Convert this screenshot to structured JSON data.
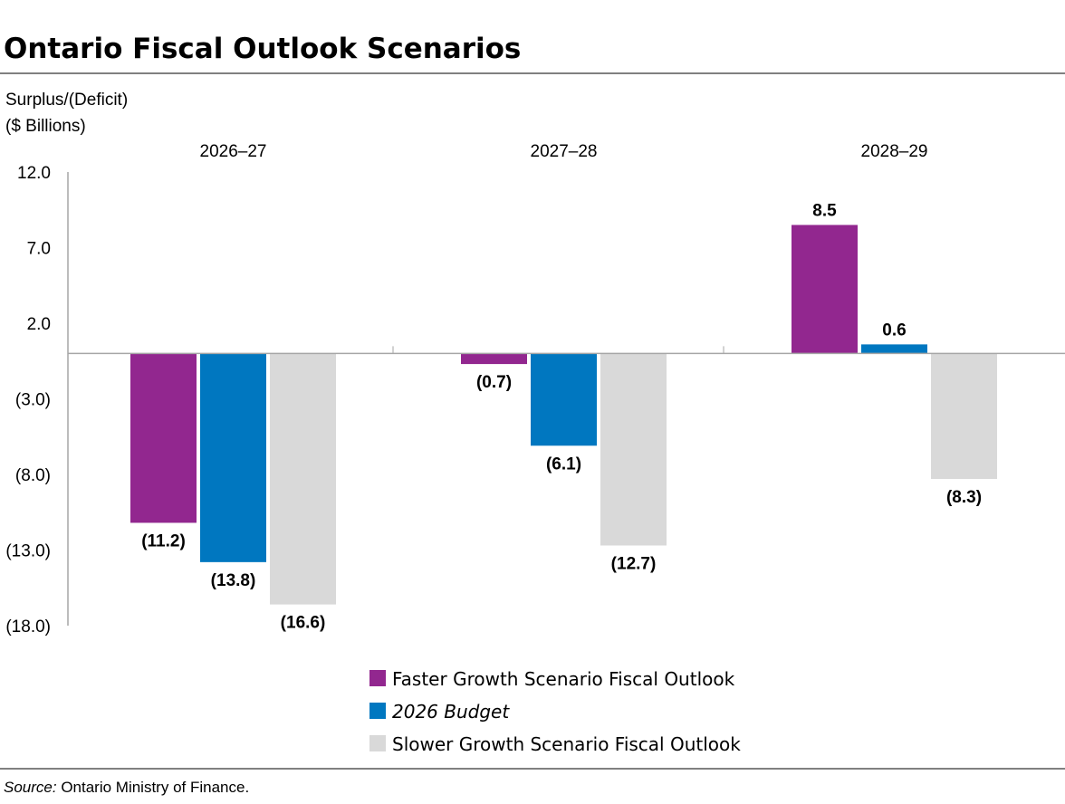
{
  "chart_data": {
    "type": "bar",
    "title": "Ontario Fiscal Outlook Scenarios",
    "ylabel_lines": [
      "Surplus/(Deficit)",
      "($ Billions)"
    ],
    "categories": [
      "2026–27",
      "2027–28",
      "2028–29"
    ],
    "ylim": [
      -18,
      12
    ],
    "yticks": [
      12,
      7,
      2,
      -3,
      -8,
      -13,
      -18
    ],
    "ytick_labels": [
      "12.0",
      "7.0",
      "2.0",
      "(3.0)",
      "(8.0)",
      "(13.0)",
      "(18.0)"
    ],
    "grid": false,
    "legend_placement": "bottom-center",
    "series": [
      {
        "name": "Faster Growth Scenario Fiscal Outlook",
        "values": [
          -11.2,
          -0.7,
          8.5
        ],
        "labels": [
          "(11.2)",
          "(0.7)",
          "8.5"
        ],
        "color": "#92278F",
        "italic": false
      },
      {
        "name": "2026 Budget",
        "values": [
          -13.8,
          -6.1,
          0.6
        ],
        "labels": [
          "(13.8)",
          "(6.1)",
          "0.6"
        ],
        "color": "#0077C0",
        "italic": true
      },
      {
        "name": "Slower Growth Scenario Fiscal Outlook",
        "values": [
          -16.6,
          -12.7,
          -8.3
        ],
        "labels": [
          "(16.6)",
          "(12.7)",
          "(8.3)"
        ],
        "color": "#D9D9D9",
        "italic": false
      }
    ]
  },
  "source": {
    "label": "Source:",
    "text": " Ontario Ministry of Finance."
  }
}
